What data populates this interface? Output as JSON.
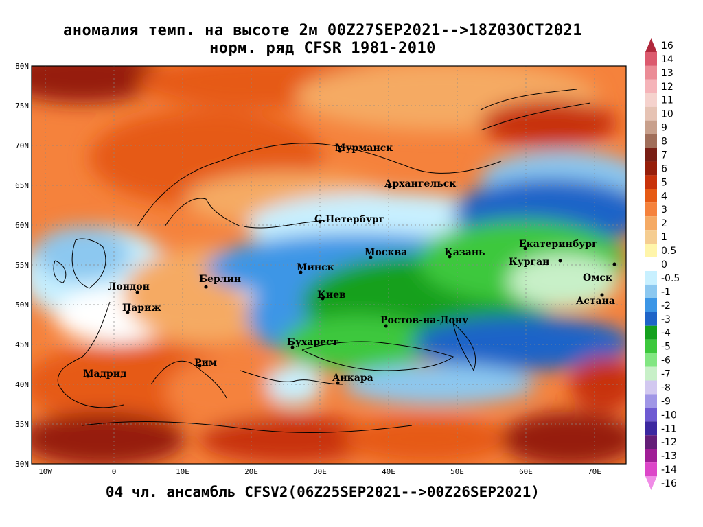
{
  "title": {
    "line1": "аномалия темп. на высоте 2м 00Z27SEP2021-->18Z03OCT2021",
    "line2": "норм. ряд CFSR 1981-2010"
  },
  "footer": "04 чл. ансамбль CFSV2(06Z25SEP2021-->00Z26SEP2021)",
  "map": {
    "lat_labels": [
      "80N",
      "75N",
      "70N",
      "65N",
      "60N",
      "55N",
      "50N",
      "45N",
      "40N",
      "35N",
      "30N"
    ],
    "lon_labels": [
      "10W",
      "0",
      "10E",
      "20E",
      "30E",
      "40E",
      "50E",
      "60E",
      "70E"
    ],
    "cities": [
      {
        "name": "Мурманск"
      },
      {
        "name": "Архангельск"
      },
      {
        "name": "С.Петербург"
      },
      {
        "name": "Москва"
      },
      {
        "name": "Казань"
      },
      {
        "name": "Екатеринбург"
      },
      {
        "name": "Курган"
      },
      {
        "name": "Омск"
      },
      {
        "name": "Астана"
      },
      {
        "name": "Минск"
      },
      {
        "name": "Берлин"
      },
      {
        "name": "Лондон"
      },
      {
        "name": "Париж"
      },
      {
        "name": "Киев"
      },
      {
        "name": "Ростов-на-Дону"
      },
      {
        "name": "Бухарест"
      },
      {
        "name": "Рим"
      },
      {
        "name": "Мадрид"
      },
      {
        "name": "Анкара"
      }
    ]
  },
  "colorbar": {
    "labels": [
      "16",
      "14",
      "13",
      "12",
      "11",
      "10",
      "9",
      "8",
      "7",
      "6",
      "5",
      "4",
      "3",
      "2",
      "1",
      "0.5",
      "0",
      "-0.5",
      "-1",
      "-2",
      "-3",
      "-4",
      "-5",
      "-6",
      "-7",
      "-8",
      "-9",
      "-10",
      "-11",
      "-12",
      "-13",
      "-14",
      "-16"
    ],
    "colors": [
      "#b0283c",
      "#dc5a6e",
      "#eb8c96",
      "#f5b4b9",
      "#f5d2cd",
      "#e6c3b4",
      "#c8a08c",
      "#a06e5a",
      "#781e14",
      "#961e0a",
      "#c8320a",
      "#e65a14",
      "#f5823c",
      "#f5aa64",
      "#f5cd91",
      "#fff5aa",
      "#ffffff",
      "#c8f0ff",
      "#8cc8f0",
      "#3c96e6",
      "#1e64c8",
      "#14a01e",
      "#3cc83c",
      "#82e682",
      "#c8f0c8",
      "#d2c8f0",
      "#a096e6",
      "#6e5ad2",
      "#3c28a0",
      "#641e78",
      "#a01e96",
      "#dc46c8",
      "#f08ce6"
    ]
  }
}
